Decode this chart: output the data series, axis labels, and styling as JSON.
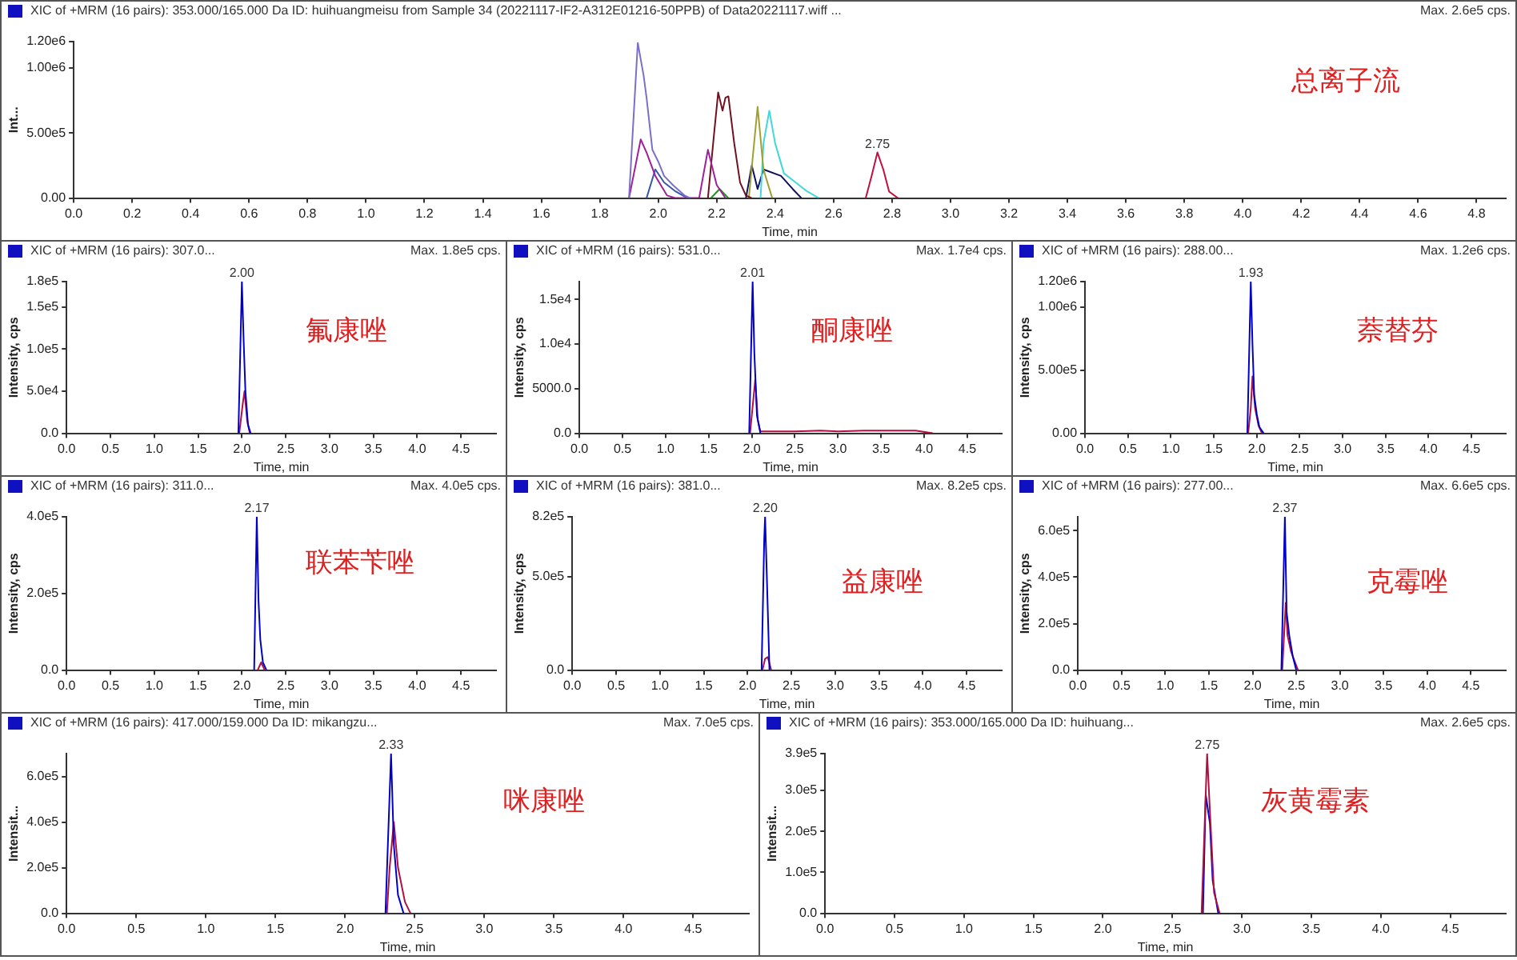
{
  "chart_data": [
    {
      "type": "line",
      "title": "XIC of +MRM (16 pairs): 353.000/165.000 Da ID: huihuangmeisu from Sample 34 (20221117-IF2-A312E01216-50PPB) of Data20221117.wiff ...",
      "subtitle": "Max. 2.6e5 cps.",
      "xlabel": "Time, min",
      "ylabel": "Int...",
      "annotations": [
        "总离子流",
        {
          "text": "2.75",
          "x": 2.75,
          "y": 350000
        }
      ],
      "xlim": [
        0,
        4.9
      ],
      "xticks": [
        {
          "value": 0,
          "label": "0.0"
        },
        0.2,
        0.4,
        0.6,
        0.8,
        {
          "value": 1,
          "label": "1.0"
        },
        1.2,
        1.4,
        1.6,
        1.8,
        {
          "value": 2,
          "label": "2.0"
        },
        2.2,
        2.4,
        2.6,
        2.8,
        {
          "value": 3,
          "label": "3.0"
        },
        3.2,
        3.4,
        3.6,
        3.8,
        {
          "value": 4,
          "label": "4.0"
        },
        4.2,
        4.4,
        4.6,
        4.8
      ],
      "ylim": [
        0,
        1200000
      ],
      "yticks": [
        {
          "value": 0,
          "label": "0.00"
        },
        {
          "value": 500000,
          "label": "5.00e5"
        },
        {
          "value": 1000000,
          "label": "1.00e6"
        },
        {
          "value": 1200000,
          "label": "1.20e6"
        }
      ],
      "series": [
        {
          "color": "#7b70c8",
          "x": [
            1.9,
            1.93,
            1.95,
            1.96,
            1.98,
            2.0,
            2.02,
            2.05,
            2.09,
            2.11
          ],
          "values": [
            0,
            1190000,
            940000,
            770000,
            370000,
            280000,
            170000,
            100000,
            20000,
            0
          ]
        },
        {
          "color": "#a0209a",
          "x": [
            1.9,
            1.94,
            1.96,
            1.99,
            2.03,
            2.06,
            2.14,
            2.17,
            2.2,
            2.23
          ],
          "values": [
            0,
            450000,
            350000,
            170000,
            20000,
            0,
            0,
            370000,
            100000,
            0
          ]
        },
        {
          "color": "#701020",
          "x": [
            2.17,
            2.19,
            2.205,
            2.22,
            2.23,
            2.24,
            2.26,
            2.28,
            2.3,
            2.32
          ],
          "values": [
            0,
            470000,
            810000,
            670000,
            770000,
            780000,
            420000,
            120000,
            20000,
            0
          ]
        },
        {
          "color": "#a0a030",
          "x": [
            2.31,
            2.34,
            2.36,
            2.39
          ],
          "values": [
            0,
            700000,
            220000,
            0
          ]
        },
        {
          "color": "#40d8d8",
          "x": [
            2.35,
            2.36,
            2.38,
            2.4,
            2.43,
            2.47,
            2.51,
            2.55
          ],
          "values": [
            0,
            420000,
            670000,
            420000,
            190000,
            120000,
            50000,
            0
          ]
        },
        {
          "color": "#101060",
          "x": [
            2.3,
            2.32,
            2.34,
            2.36,
            2.42,
            2.46,
            2.49
          ],
          "values": [
            0,
            250000,
            70000,
            220000,
            170000,
            70000,
            0
          ]
        },
        {
          "color": "#209020",
          "x": [
            2.18,
            2.21,
            2.24
          ],
          "values": [
            0,
            70000,
            0
          ]
        },
        {
          "color": "#3858a8",
          "x": [
            1.96,
            1.99,
            2.02,
            2.06,
            2.1
          ],
          "values": [
            0,
            220000,
            120000,
            50000,
            0
          ]
        },
        {
          "color": "#c01040",
          "x": [
            2.71,
            2.73,
            2.75,
            2.77,
            2.79,
            2.82
          ],
          "values": [
            0,
            170000,
            350000,
            220000,
            50000,
            0
          ]
        }
      ]
    },
    {
      "type": "line",
      "title": "XIC of +MRM (16 pairs): 307.0...",
      "subtitle": "Max. 1.8e5 cps.",
      "xlabel": "Time, min",
      "ylabel": "Intensity, cps",
      "annotations": [
        "氟康唑",
        {
          "text": "2.00",
          "x": 2.0,
          "y": 180000
        }
      ],
      "xlim": [
        0,
        4.9
      ],
      "xticks": [
        {
          "value": 0,
          "label": "0.0"
        },
        0.5,
        {
          "value": 1,
          "label": "1.0"
        },
        1.5,
        {
          "value": 2,
          "label": "2.0"
        },
        2.5,
        {
          "value": 3,
          "label": "3.0"
        },
        3.5,
        {
          "value": 4,
          "label": "4.0"
        },
        4.5
      ],
      "ylim": [
        0,
        180000
      ],
      "yticks": [
        {
          "value": 0,
          "label": "0.0"
        },
        {
          "value": 50000,
          "label": "5.0e4"
        },
        {
          "value": 100000,
          "label": "1.0e5"
        },
        {
          "value": 150000,
          "label": "1.5e5"
        },
        {
          "value": 180000,
          "label": "1.8e5"
        }
      ],
      "series": [
        {
          "color": "#0000c8",
          "x": [
            1.96,
            2.0,
            2.02,
            2.04,
            2.07,
            2.1
          ],
          "values": [
            0,
            180000,
            110000,
            50000,
            10000,
            0
          ]
        },
        {
          "color": "#b01040",
          "x": [
            1.97,
            2.01,
            2.03,
            2.06,
            2.09
          ],
          "values": [
            0,
            35000,
            50000,
            15000,
            0
          ]
        }
      ]
    },
    {
      "type": "line",
      "title": "XIC of +MRM (16 pairs): 531.0...",
      "subtitle": "Max. 1.7e4 cps.",
      "xlabel": "Time, min",
      "ylabel": "Intensity, cps",
      "annotations": [
        "酮康唑",
        {
          "text": "2.01",
          "x": 2.01,
          "y": 17000
        }
      ],
      "xlim": [
        0,
        4.9
      ],
      "xticks": [
        {
          "value": 0,
          "label": "0.0"
        },
        0.5,
        {
          "value": 1,
          "label": "1.0"
        },
        1.5,
        {
          "value": 2,
          "label": "2.0"
        },
        2.5,
        {
          "value": 3,
          "label": "3.0"
        },
        3.5,
        {
          "value": 4,
          "label": "4.0"
        },
        4.5
      ],
      "ylim": [
        0,
        17000
      ],
      "yticks": [
        {
          "value": 0,
          "label": "0.0"
        },
        {
          "value": 5000,
          "label": "5000.0"
        },
        {
          "value": 10000,
          "label": "1.0e4"
        },
        {
          "value": 15000,
          "label": "1.5e4"
        }
      ],
      "series": [
        {
          "color": "#0000c8",
          "x": [
            1.97,
            2.01,
            2.03,
            2.06,
            2.1
          ],
          "values": [
            0,
            17000,
            9000,
            2000,
            0
          ]
        },
        {
          "color": "#b01040",
          "x": [
            1.98,
            2.02,
            2.04,
            2.07,
            2.1,
            2.5,
            2.8,
            3.0,
            3.3,
            3.6,
            3.9,
            4.1
          ],
          "values": [
            0,
            4000,
            6000,
            1500,
            200,
            200,
            300,
            200,
            300,
            300,
            300,
            0
          ]
        }
      ]
    },
    {
      "type": "line",
      "title": "XIC of +MRM (16 pairs): 288.00...",
      "subtitle": "Max. 1.2e6 cps.",
      "xlabel": "Time, min",
      "ylabel": "Intensity, cps",
      "annotations": [
        "萘替芬",
        {
          "text": "1.93",
          "x": 1.93,
          "y": 1200000
        }
      ],
      "xlim": [
        0,
        4.9
      ],
      "xticks": [
        {
          "value": 0,
          "label": "0.0"
        },
        0.5,
        {
          "value": 1,
          "label": "1.0"
        },
        1.5,
        {
          "value": 2,
          "label": "2.0"
        },
        2.5,
        {
          "value": 3,
          "label": "3.0"
        },
        3.5,
        {
          "value": 4,
          "label": "4.0"
        },
        4.5
      ],
      "ylim": [
        0,
        1200000
      ],
      "yticks": [
        {
          "value": 0,
          "label": "0.00"
        },
        {
          "value": 500000,
          "label": "5.00e5"
        },
        {
          "value": 1000000,
          "label": "1.00e6"
        },
        {
          "value": 1200000,
          "label": "1.20e6"
        }
      ],
      "series": [
        {
          "color": "#0000c8",
          "x": [
            1.89,
            1.93,
            1.95,
            1.97,
            2.0,
            2.03,
            2.08
          ],
          "values": [
            0,
            1200000,
            700000,
            300000,
            150000,
            50000,
            0
          ]
        },
        {
          "color": "#b01040",
          "x": [
            1.9,
            1.93,
            1.95,
            1.98,
            2.02,
            2.06
          ],
          "values": [
            0,
            200000,
            450000,
            200000,
            60000,
            0
          ]
        }
      ]
    },
    {
      "type": "line",
      "title": "XIC of +MRM (16 pairs): 311.0...",
      "subtitle": "Max. 4.0e5 cps.",
      "xlabel": "Time, min",
      "ylabel": "Intensity, cps",
      "annotations": [
        "联苯苄唑",
        {
          "text": "2.17",
          "x": 2.17,
          "y": 400000
        }
      ],
      "xlim": [
        0,
        4.9
      ],
      "xticks": [
        {
          "value": 0,
          "label": "0.0"
        },
        0.5,
        {
          "value": 1,
          "label": "1.0"
        },
        1.5,
        {
          "value": 2,
          "label": "2.0"
        },
        2.5,
        {
          "value": 3,
          "label": "3.0"
        },
        3.5,
        {
          "value": 4,
          "label": "4.0"
        },
        4.5
      ],
      "ylim": [
        0,
        400000
      ],
      "yticks": [
        {
          "value": 0,
          "label": "0.0"
        },
        {
          "value": 200000,
          "label": "2.0e5"
        },
        {
          "value": 400000,
          "label": "4.0e5"
        }
      ],
      "series": [
        {
          "color": "#0000c8",
          "x": [
            2.14,
            2.17,
            2.19,
            2.21,
            2.24,
            2.28
          ],
          "values": [
            0,
            400000,
            180000,
            80000,
            20000,
            0
          ]
        },
        {
          "color": "#b01040",
          "x": [
            2.18,
            2.22,
            2.26
          ],
          "values": [
            0,
            20000,
            0
          ]
        }
      ]
    },
    {
      "type": "line",
      "title": "XIC of +MRM (16 pairs): 381.0...",
      "subtitle": "Max. 8.2e5 cps.",
      "xlabel": "Time, min",
      "ylabel": "Intensity, cps",
      "annotations": [
        "益康唑",
        {
          "text": "2.20",
          "x": 2.2,
          "y": 820000
        }
      ],
      "xlim": [
        0,
        4.9
      ],
      "xticks": [
        {
          "value": 0,
          "label": "0.0"
        },
        0.5,
        {
          "value": 1,
          "label": "1.0"
        },
        1.5,
        {
          "value": 2,
          "label": "2.0"
        },
        2.5,
        {
          "value": 3,
          "label": "3.0"
        },
        3.5,
        {
          "value": 4,
          "label": "4.0"
        },
        4.5
      ],
      "ylim": [
        0,
        820000
      ],
      "yticks": [
        {
          "value": 0,
          "label": "0.0"
        },
        {
          "value": 500000,
          "label": "5.0e5"
        },
        {
          "value": 820000,
          "label": "8.2e5"
        }
      ],
      "series": [
        {
          "color": "#0000c8",
          "x": [
            2.16,
            2.19,
            2.2,
            2.22,
            2.25
          ],
          "values": [
            0,
            700000,
            820000,
            500000,
            0
          ]
        },
        {
          "color": "#b01040",
          "x": [
            2.17,
            2.2,
            2.23,
            2.27
          ],
          "values": [
            0,
            60000,
            70000,
            0
          ]
        }
      ]
    },
    {
      "type": "line",
      "title": "XIC of +MRM (16 pairs): 277.00...",
      "subtitle": "Max. 6.6e5 cps.",
      "xlabel": "Time, min",
      "ylabel": "Intensity, cps",
      "annotations": [
        "克霉唑",
        {
          "text": "2.37",
          "x": 2.37,
          "y": 660000
        }
      ],
      "xlim": [
        0,
        4.9
      ],
      "xticks": [
        {
          "value": 0,
          "label": "0.0"
        },
        0.5,
        {
          "value": 1,
          "label": "1.0"
        },
        1.5,
        {
          "value": 2,
          "label": "2.0"
        },
        2.5,
        {
          "value": 3,
          "label": "3.0"
        },
        3.5,
        {
          "value": 4,
          "label": "4.0"
        },
        4.5
      ],
      "ylim": [
        0,
        660000
      ],
      "yticks": [
        {
          "value": 0,
          "label": "0.0"
        },
        {
          "value": 200000,
          "label": "2.0e5"
        },
        {
          "value": 400000,
          "label": "4.0e5"
        },
        {
          "value": 600000,
          "label": "6.0e5"
        }
      ],
      "series": [
        {
          "color": "#0000c8",
          "x": [
            2.33,
            2.37,
            2.39,
            2.42,
            2.46,
            2.5
          ],
          "values": [
            0,
            660000,
            250000,
            150000,
            60000,
            0
          ]
        },
        {
          "color": "#b01040",
          "x": [
            2.34,
            2.38,
            2.4,
            2.44,
            2.48,
            2.52
          ],
          "values": [
            0,
            290000,
            150000,
            80000,
            40000,
            0
          ]
        }
      ]
    },
    {
      "type": "line",
      "title": "XIC of +MRM (16 pairs): 417.000/159.000 Da ID: mikangzu...",
      "subtitle": "Max. 7.0e5 cps.",
      "xlabel": "Time, min",
      "ylabel": "Intensit...",
      "annotations": [
        "咪康唑",
        {
          "text": "2.33",
          "x": 2.33,
          "y": 700000
        }
      ],
      "xlim": [
        0,
        4.9
      ],
      "xticks": [
        {
          "value": 0,
          "label": "0.0"
        },
        0.5,
        {
          "value": 1,
          "label": "1.0"
        },
        1.5,
        {
          "value": 2,
          "label": "2.0"
        },
        2.5,
        {
          "value": 3,
          "label": "3.0"
        },
        3.5,
        {
          "value": 4,
          "label": "4.0"
        },
        4.5
      ],
      "ylim": [
        0,
        700000
      ],
      "yticks": [
        {
          "value": 0,
          "label": "0.0"
        },
        {
          "value": 200000,
          "label": "2.0e5"
        },
        {
          "value": 400000,
          "label": "4.0e5"
        },
        {
          "value": 600000,
          "label": "6.0e5"
        }
      ],
      "series": [
        {
          "color": "#0000c8",
          "x": [
            2.29,
            2.33,
            2.35,
            2.38,
            2.42
          ],
          "values": [
            0,
            700000,
            300000,
            80000,
            0
          ]
        },
        {
          "color": "#b01040",
          "x": [
            2.3,
            2.32,
            2.35,
            2.38,
            2.43,
            2.47
          ],
          "values": [
            0,
            200000,
            400000,
            200000,
            50000,
            0
          ]
        }
      ]
    },
    {
      "type": "line",
      "title": "XIC of +MRM (16 pairs): 353.000/165.000 Da ID: huihuang...",
      "subtitle": "Max. 2.6e5 cps.",
      "xlabel": "Time, min",
      "ylabel": "Intensit...",
      "annotations": [
        "灰黄霉素",
        {
          "text": "2.75",
          "x": 2.75,
          "y": 390000
        }
      ],
      "xlim": [
        0,
        4.9
      ],
      "xticks": [
        {
          "value": 0,
          "label": "0.0"
        },
        0.5,
        {
          "value": 1,
          "label": "1.0"
        },
        1.5,
        {
          "value": 2,
          "label": "2.0"
        },
        2.5,
        {
          "value": 3,
          "label": "3.0"
        },
        3.5,
        {
          "value": 4,
          "label": "4.0"
        },
        4.5
      ],
      "ylim": [
        0,
        390000
      ],
      "yticks": [
        {
          "value": 0,
          "label": "0.0"
        },
        {
          "value": 100000,
          "label": "1.0e5"
        },
        {
          "value": 200000,
          "label": "2.0e5"
        },
        {
          "value": 300000,
          "label": "3.0e5"
        },
        {
          "value": 390000,
          "label": "3.9e5"
        }
      ],
      "series": [
        {
          "color": "#b01040",
          "x": [
            2.71,
            2.75,
            2.77,
            2.8,
            2.84
          ],
          "values": [
            0,
            390000,
            250000,
            50000,
            0
          ]
        },
        {
          "color": "#0000c8",
          "x": [
            2.72,
            2.74,
            2.77,
            2.79,
            2.83
          ],
          "values": [
            0,
            290000,
            220000,
            80000,
            0
          ]
        }
      ]
    }
  ]
}
